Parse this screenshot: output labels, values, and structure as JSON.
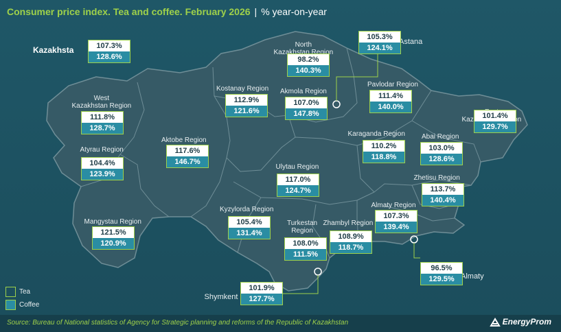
{
  "header": {
    "title": "Consumer price index. Tea and coffee. February 2026",
    "separator": "|",
    "subtitle": "% year-on-year"
  },
  "regions": [
    {
      "key": "kazakhstan",
      "name": "Kazakhsta",
      "tea": "107.3%",
      "coffee": "128.6%"
    },
    {
      "key": "north_kazakhstan",
      "name": "North\nKazakhstan Region",
      "tea": "98.2%",
      "coffee": "140.3%"
    },
    {
      "key": "astana",
      "name": "Astana",
      "tea": "105.3%",
      "coffee": "124.1%"
    },
    {
      "key": "west_kazakhstan",
      "name": "West\nKazakhstan Region",
      "tea": "111.8%",
      "coffee": "128.7%"
    },
    {
      "key": "kostanay",
      "name": "Kostanay Region",
      "tea": "112.9%",
      "coffee": "121.6%"
    },
    {
      "key": "akmola",
      "name": "Akmola Region",
      "tea": "107.0%",
      "coffee": "147.8%"
    },
    {
      "key": "pavlodar",
      "name": "Pavlodar Region",
      "tea": "111.4%",
      "coffee": "140.0%"
    },
    {
      "key": "east_kazakhstan",
      "name": "East\nKazakhstan Region",
      "tea": "101.4%",
      "coffee": "129.7%"
    },
    {
      "key": "atyrau",
      "name": "Atyrau Region",
      "tea": "104.4%",
      "coffee": "123.9%"
    },
    {
      "key": "aktobe",
      "name": "Aktobe Region",
      "tea": "117.6%",
      "coffee": "146.7%"
    },
    {
      "key": "karaganda",
      "name": "Karaganda Region",
      "tea": "110.2%",
      "coffee": "118.8%"
    },
    {
      "key": "abai",
      "name": "Abai Region",
      "tea": "103.0%",
      "coffee": "128.6%"
    },
    {
      "key": "ulytau",
      "name": "Ulytau Region",
      "tea": "117.0%",
      "coffee": "124.7%"
    },
    {
      "key": "zhetisu",
      "name": "Zhetisu Region",
      "tea": "113.7%",
      "coffee": "140.4%"
    },
    {
      "key": "kyzylorda",
      "name": "Kyzylorda Region",
      "tea": "105.4%",
      "coffee": "131.4%"
    },
    {
      "key": "almaty_region",
      "name": "Almaty Region",
      "tea": "107.3%",
      "coffee": "139.4%"
    },
    {
      "key": "mangystau",
      "name": "Mangystau Region",
      "tea": "121.5%",
      "coffee": "120.9%"
    },
    {
      "key": "turkestan",
      "name": "Turkestan\nRegion",
      "tea": "108.0%",
      "coffee": "111.5%"
    },
    {
      "key": "zhambyl",
      "name": "Zhambyl Region",
      "tea": "108.9%",
      "coffee": "118.7%"
    },
    {
      "key": "almaty",
      "name": "Almaty",
      "tea": "96.5%",
      "coffee": "129.5%"
    },
    {
      "key": "shymkent",
      "name": "Shymkent",
      "tea": "101.9%",
      "coffee": "127.7%"
    }
  ],
  "legend": {
    "tea": "Tea",
    "coffee": "Coffee"
  },
  "colors": {
    "tea": "#ffffff",
    "coffee": "#2a8da3",
    "accent": "#9fd14a",
    "land": "#365a66",
    "background": "#1d5262"
  },
  "footer": {
    "source": "Source: Bureau of National statistics of Agency for Strategic planning and reforms of the Republic of Kazakhstan",
    "logo": "EnergyProm"
  }
}
